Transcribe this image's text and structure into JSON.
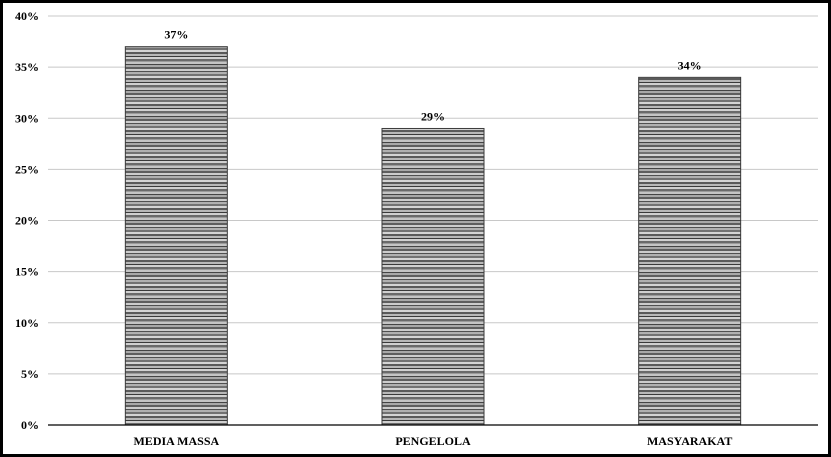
{
  "chart_data": {
    "type": "bar",
    "categories": [
      "MEDIA MASSA",
      "PENGELOLA",
      "MASYARAKAT"
    ],
    "values": [
      37,
      29,
      34
    ],
    "data_labels": [
      "37%",
      "29%",
      "34%"
    ],
    "ylim": [
      0,
      40
    ],
    "yticks": [
      0,
      5,
      10,
      15,
      20,
      25,
      30,
      35,
      40
    ],
    "ytick_labels": [
      "0%",
      "5%",
      "10%",
      "15%",
      "20%",
      "25%",
      "30%",
      "35%",
      "40%"
    ],
    "grid": true,
    "legend": "none",
    "colors": {
      "bar_dark": "#3a3a3a",
      "bar_mid": "#7a7a7a",
      "bar_light": "#c8c8c8",
      "grid": "#c8c8c8",
      "axis": "#000000"
    }
  }
}
